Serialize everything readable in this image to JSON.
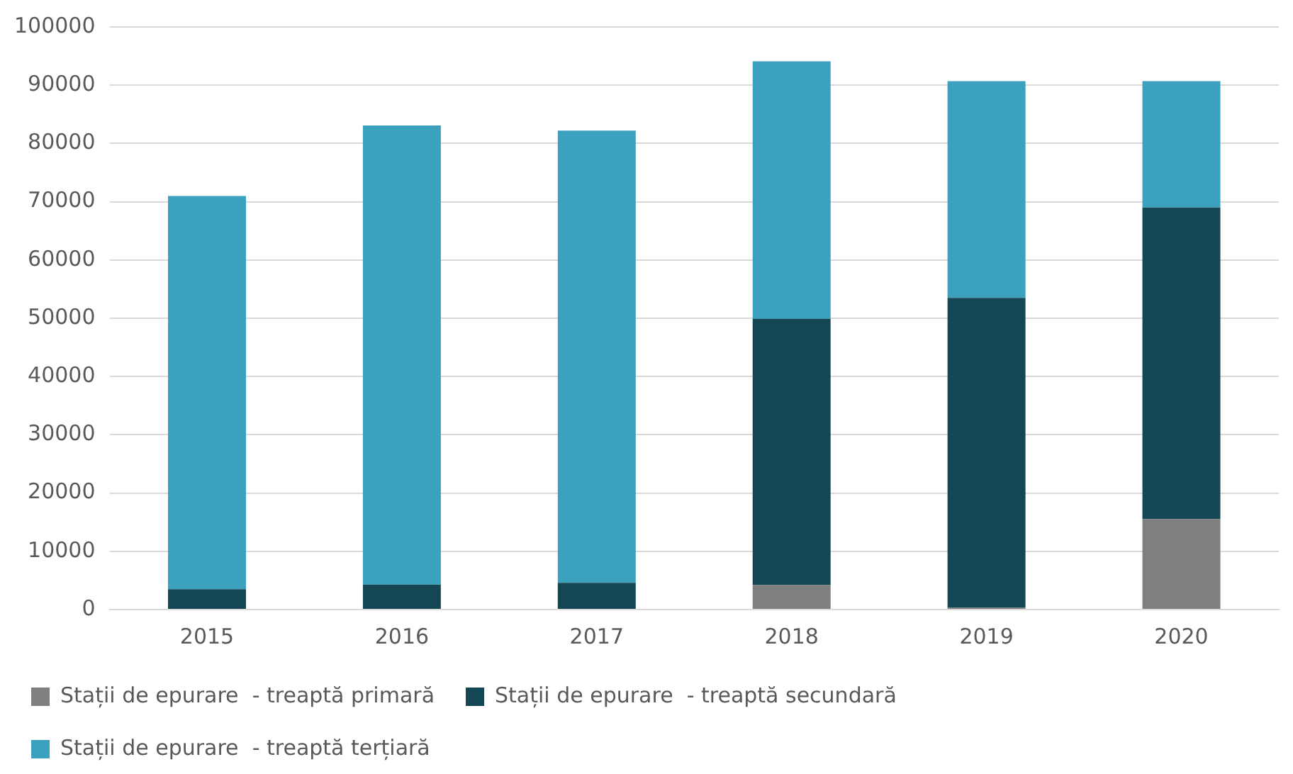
{
  "chart_data": {
    "type": "bar",
    "stacked": true,
    "categories": [
      "2015",
      "2016",
      "2017",
      "2018",
      "2019",
      "2020"
    ],
    "series": [
      {
        "name": "Stații de epurare  - treaptă primară",
        "color": "#7f7f7f",
        "values": [
          0,
          0,
          0,
          4200,
          300,
          15500
        ]
      },
      {
        "name": "Stații de epurare  - treaptă secundară",
        "color": "#144753",
        "values": [
          3500,
          4300,
          4600,
          45700,
          53200,
          53500
        ]
      },
      {
        "name": "Stații de epurare  - treaptă terțiară",
        "color": "#3ca0bf",
        "values": [
          67500,
          78800,
          77600,
          44200,
          37200,
          21700
        ]
      }
    ],
    "ylim": [
      0,
      100000
    ],
    "yticks": [
      0,
      10000,
      20000,
      30000,
      40000,
      50000,
      60000,
      70000,
      80000,
      90000,
      100000
    ],
    "grid": "y",
    "legend": "bottom"
  }
}
